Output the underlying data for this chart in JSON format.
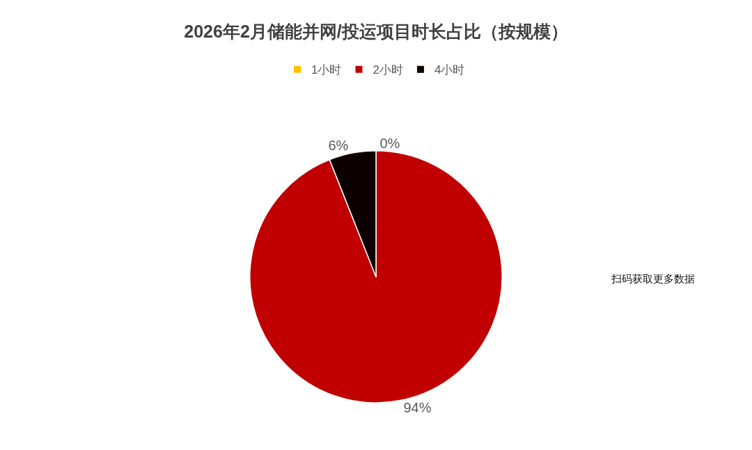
{
  "chart_data": {
    "type": "pie",
    "title": "2026年2月储能并网/投运项目时长占比（按规模）",
    "categories": [
      "1小时",
      "2小时",
      "4小时"
    ],
    "values": [
      0,
      94,
      6
    ],
    "colors": [
      "#ffc000",
      "#c00000",
      "#0d0000"
    ],
    "value_labels": [
      "0%",
      "94%",
      "6%"
    ],
    "legend": "top",
    "annotations": [
      "扫码获取更多数据"
    ]
  }
}
